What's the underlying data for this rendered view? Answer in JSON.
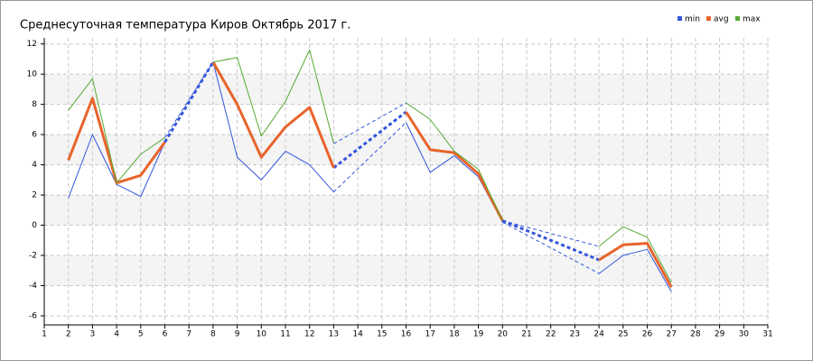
{
  "chart_data": {
    "type": "line",
    "title": "Среднесуточная температура Киров  Октябрь 2017 г.",
    "x": [
      2,
      3,
      4,
      5,
      6,
      7,
      8,
      9,
      10,
      11,
      12,
      13,
      14,
      15,
      16,
      17,
      18,
      19,
      20,
      21,
      22,
      23,
      24,
      25,
      26,
      27
    ],
    "series": [
      {
        "name": "min",
        "color": "#3355dd",
        "width": 1,
        "values": [
          1.8,
          6.0,
          2.7,
          1.9,
          5.5,
          null,
          10.8,
          4.5,
          3.0,
          4.9,
          4.0,
          2.2,
          null,
          null,
          6.8,
          3.5,
          4.6,
          3.2,
          0.2,
          null,
          null,
          null,
          -3.2,
          -2.0,
          -1.6,
          -4.4
        ]
      },
      {
        "name": "avg",
        "color": "#e8642c",
        "width": 3,
        "values": [
          4.3,
          8.4,
          2.8,
          3.3,
          5.5,
          null,
          10.8,
          8.0,
          4.5,
          6.5,
          7.8,
          3.8,
          null,
          null,
          7.5,
          5.0,
          4.8,
          3.4,
          0.3,
          null,
          null,
          null,
          -2.3,
          -1.3,
          -1.2,
          -4.1
        ]
      },
      {
        "name": "max",
        "color": "#55aa33",
        "width": 1,
        "values": [
          7.6,
          9.7,
          2.8,
          4.7,
          5.8,
          null,
          10.8,
          11.1,
          5.9,
          8.2,
          11.6,
          5.4,
          null,
          null,
          8.1,
          7.0,
          4.9,
          3.7,
          0.3,
          null,
          null,
          null,
          -1.4,
          -0.1,
          -0.8,
          -3.8
        ]
      }
    ],
    "gap_color": "#3355dd",
    "xlim": [
      1,
      31
    ],
    "xticks": [
      1,
      2,
      3,
      4,
      5,
      6,
      7,
      8,
      9,
      10,
      11,
      12,
      13,
      14,
      15,
      16,
      17,
      18,
      19,
      20,
      21,
      22,
      23,
      24,
      25,
      26,
      27,
      28,
      29,
      30,
      31
    ],
    "ylim": [
      -6.6,
      12.4
    ],
    "yticks": [
      -6,
      -4,
      -2,
      0,
      2,
      4,
      6,
      8,
      10,
      12
    ],
    "grid": true,
    "legend": "top-right"
  }
}
